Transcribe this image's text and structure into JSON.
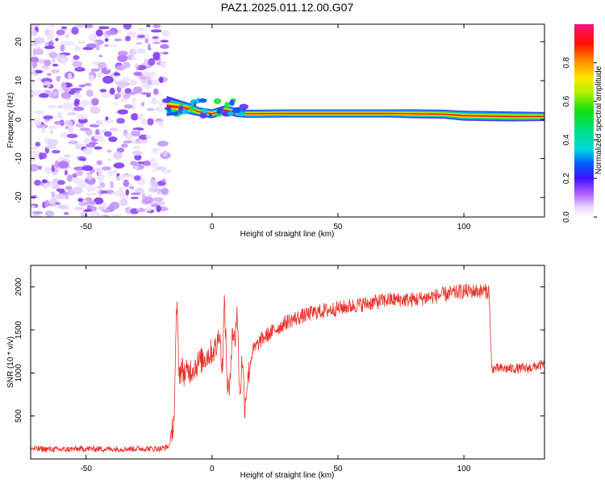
{
  "title": "PAZ1.2025.011.12.00.G07",
  "chart_data": [
    {
      "type": "heatmap",
      "xlabel": "Height of straight line (km)",
      "ylabel": "Frequency (Hz)",
      "xlim": [
        -72,
        132
      ],
      "ylim": [
        -25,
        24.5
      ],
      "xticks": [
        -50,
        0,
        50,
        100
      ],
      "yticks": [
        -20,
        -10,
        0,
        10,
        20
      ],
      "colorbar": {
        "label": "Normalized spectral amplitude",
        "range": [
          0,
          1
        ],
        "ticks": [
          0.0,
          0.2,
          0.4,
          0.6,
          0.8
        ],
        "tick_labels": [
          "0.0",
          "0.2",
          "0.4",
          "0.6",
          "0.8"
        ]
      },
      "noise_region_x": [
        -72,
        -18
      ],
      "carrier_track": [
        {
          "x": -18,
          "freq": 3.5,
          "width": 4.5
        },
        {
          "x": -10,
          "freq": 3.0,
          "width": 2.5
        },
        {
          "x": -5,
          "freq": 2.0,
          "width": 2.0
        },
        {
          "x": 0,
          "freq": 1.5,
          "width": 2.0
        },
        {
          "x": 5,
          "freq": 2.5,
          "width": 2.0
        },
        {
          "x": 10,
          "freq": 1.8,
          "width": 2.0
        },
        {
          "x": 14,
          "freq": 1.5,
          "width": 1.8
        },
        {
          "x": 30,
          "freq": 1.6,
          "width": 1.8
        },
        {
          "x": 50,
          "freq": 1.6,
          "width": 1.8
        },
        {
          "x": 70,
          "freq": 1.6,
          "width": 1.8
        },
        {
          "x": 80,
          "freq": 1.5,
          "width": 2.0
        },
        {
          "x": 92,
          "freq": 1.4,
          "width": 2.0
        },
        {
          "x": 100,
          "freq": 1.0,
          "width": 2.2
        },
        {
          "x": 110,
          "freq": 0.9,
          "width": 2.2
        },
        {
          "x": 120,
          "freq": 0.8,
          "width": 2.2
        },
        {
          "x": 132,
          "freq": 0.8,
          "width": 2.0
        }
      ]
    },
    {
      "type": "line",
      "xlabel": "Height of straight line (km)",
      "ylabel": "SNR (10 * v/v)",
      "xlim": [
        -72,
        132
      ],
      "ylim": [
        0,
        2250
      ],
      "xticks": [
        -50,
        0,
        50,
        100
      ],
      "yticks": [
        500,
        1000,
        1500,
        2000
      ],
      "series": [
        {
          "color": "#e8312a",
          "x": [
            -72,
            -60,
            -50,
            -40,
            -30,
            -20,
            -17,
            -15,
            -14,
            -13,
            -12,
            -11,
            -10,
            -8,
            -6,
            -4,
            -2,
            0,
            2,
            3,
            4,
            5,
            6,
            7,
            8,
            9,
            10,
            11,
            12,
            13,
            14,
            16,
            20,
            25,
            30,
            40,
            50,
            60,
            70,
            80,
            90,
            100,
            105,
            110,
            111,
            115,
            120,
            125,
            132
          ],
          "y": [
            120,
            110,
            120,
            115,
            120,
            120,
            150,
            500,
            1800,
            1000,
            1050,
            1000,
            1000,
            1050,
            1100,
            1150,
            1200,
            1250,
            1300,
            1550,
            1000,
            1850,
            900,
            750,
            1550,
            1350,
            1750,
            700,
            1200,
            600,
            900,
            1250,
            1400,
            1500,
            1600,
            1700,
            1750,
            1800,
            1850,
            1850,
            1900,
            1950,
            1950,
            1950,
            1050,
            1050,
            1050,
            1050,
            1100
          ]
        }
      ]
    }
  ]
}
